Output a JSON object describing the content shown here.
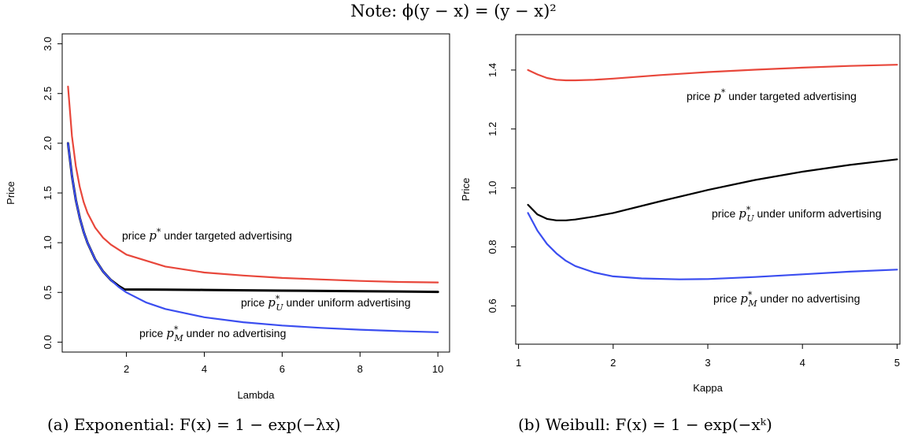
{
  "note": "Note: ϕ(y − x) = (y − x)²",
  "captions": {
    "a": "(a) Exponential: F(x) = 1 − exp(−λx)",
    "b": "(b) Weibull: F(x) = 1 − exp(−xᵏ)"
  },
  "colors": {
    "targeted": "#e8473b",
    "uniform": "#000000",
    "none": "#3b4ef0"
  },
  "chart_data": [
    {
      "type": "line",
      "xlabel": "Lambda",
      "ylabel": "Price",
      "xlim": [
        0.5,
        10
      ],
      "ylim": [
        0,
        3.0
      ],
      "xticks": [
        "2",
        "4",
        "6",
        "8",
        "10"
      ],
      "yticks": [
        "0.0",
        "0.5",
        "1.0",
        "1.5",
        "2.0",
        "2.5",
        "3.0"
      ],
      "grid": false,
      "series": [
        {
          "key": "targeted",
          "name": "price p* under targeted advertising",
          "annotation": {
            "pre": "price ",
            "sym": "p",
            "sup": "*",
            "sub": "",
            "post": " under targeted advertising"
          },
          "x": [
            0.5,
            0.6,
            0.7,
            0.8,
            0.9,
            1.0,
            1.2,
            1.4,
            1.6,
            2.0,
            3.0,
            4.0,
            5.0,
            6.0,
            7.0,
            8.0,
            9.0,
            10.0
          ],
          "y": [
            2.57,
            2.07,
            1.77,
            1.56,
            1.41,
            1.3,
            1.15,
            1.05,
            0.98,
            0.88,
            0.76,
            0.7,
            0.67,
            0.645,
            0.63,
            0.615,
            0.605,
            0.6
          ]
        },
        {
          "key": "uniform",
          "name": "price pᵤ* under uniform advertising",
          "annotation": {
            "pre": "price ",
            "sym": "p",
            "sup": "*",
            "sub": "U",
            "post": " under uniform advertising"
          },
          "x": [
            0.5,
            0.6,
            0.7,
            0.8,
            0.9,
            1.0,
            1.2,
            1.4,
            1.6,
            1.8,
            1.95,
            3.0,
            4.0,
            6.0,
            8.0,
            10.0
          ],
          "y": [
            2.0,
            1.67,
            1.43,
            1.25,
            1.11,
            1.0,
            0.83,
            0.71,
            0.625,
            0.565,
            0.53,
            0.528,
            0.525,
            0.518,
            0.512,
            0.505
          ]
        },
        {
          "key": "none",
          "name": "price pₘ* under no advertising",
          "annotation": {
            "pre": "price ",
            "sym": "p",
            "sup": "*",
            "sub": "M",
            "post": " under no advertising"
          },
          "x": [
            0.5,
            0.6,
            0.7,
            0.8,
            0.9,
            1.0,
            1.2,
            1.4,
            1.6,
            1.8,
            2.0,
            2.5,
            3.0,
            4.0,
            5.0,
            6.0,
            7.0,
            8.0,
            9.0,
            10.0
          ],
          "y": [
            2.0,
            1.67,
            1.43,
            1.25,
            1.11,
            1.0,
            0.83,
            0.71,
            0.625,
            0.555,
            0.5,
            0.4,
            0.333,
            0.25,
            0.2,
            0.167,
            0.143,
            0.125,
            0.111,
            0.1
          ]
        }
      ]
    },
    {
      "type": "line",
      "xlabel": "Kappa",
      "ylabel": "Price",
      "xlim": [
        1,
        5
      ],
      "ylim": [
        0.45,
        1.5
      ],
      "xticks": [
        "1",
        "2",
        "3",
        "4",
        "5"
      ],
      "yticks": [
        "0.6",
        "0.8",
        "1.0",
        "1.2",
        "1.4"
      ],
      "grid": false,
      "series": [
        {
          "key": "targeted",
          "name": "price p* under targeted advertising",
          "annotation": {
            "pre": "price ",
            "sym": "p",
            "sup": "*",
            "sub": "",
            "post": " under targeted advertising"
          },
          "x": [
            1.1,
            1.2,
            1.3,
            1.4,
            1.5,
            1.6,
            1.8,
            2.0,
            2.5,
            3.0,
            3.5,
            4.0,
            4.5,
            5.0
          ],
          "y": [
            1.4,
            1.385,
            1.373,
            1.367,
            1.365,
            1.365,
            1.367,
            1.371,
            1.383,
            1.393,
            1.401,
            1.408,
            1.414,
            1.418
          ]
        },
        {
          "key": "uniform",
          "name": "price pᵤ* under uniform advertising",
          "annotation": {
            "pre": "price ",
            "sym": "p",
            "sup": "*",
            "sub": "U",
            "post": " under uniform advertising"
          },
          "x": [
            1.1,
            1.2,
            1.3,
            1.4,
            1.5,
            1.6,
            1.8,
            2.0,
            2.5,
            3.0,
            3.5,
            4.0,
            4.5,
            5.0
          ],
          "y": [
            0.943,
            0.91,
            0.895,
            0.89,
            0.89,
            0.893,
            0.903,
            0.915,
            0.955,
            0.993,
            1.027,
            1.055,
            1.078,
            1.097
          ]
        },
        {
          "key": "none",
          "name": "price pₘ* under no advertising",
          "annotation": {
            "pre": "price ",
            "sym": "p",
            "sup": "*",
            "sub": "M",
            "post": " under no advertising"
          },
          "x": [
            1.1,
            1.2,
            1.3,
            1.4,
            1.5,
            1.6,
            1.8,
            2.0,
            2.3,
            2.7,
            3.0,
            3.5,
            4.0,
            4.5,
            5.0
          ],
          "y": [
            0.915,
            0.855,
            0.81,
            0.778,
            0.753,
            0.735,
            0.713,
            0.7,
            0.693,
            0.69,
            0.691,
            0.698,
            0.707,
            0.716,
            0.723
          ]
        }
      ]
    }
  ]
}
